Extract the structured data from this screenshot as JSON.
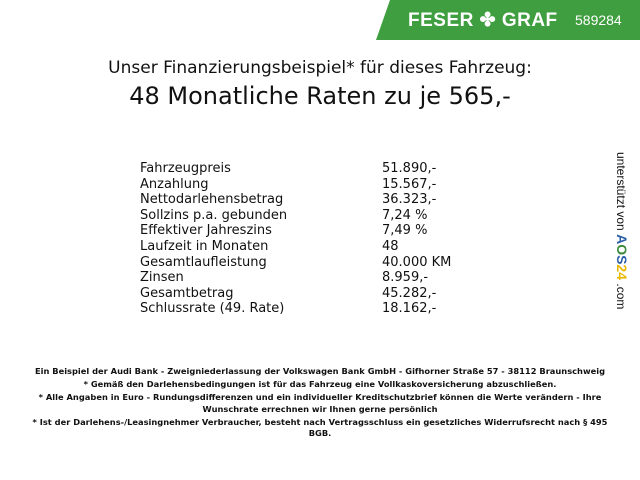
{
  "header": {
    "brand": "FESER ✤ GRAF",
    "code": "589284",
    "brand_color": "#3f9e3f"
  },
  "title": {
    "line1": "Unser Finanzierungsbeispiel* für dieses Fahrzeug:",
    "line2": "48 Monatliche Raten zu je 565,-"
  },
  "rows": [
    {
      "label": "Fahrzeugpreis",
      "value": "51.890,-"
    },
    {
      "label": "Anzahlung",
      "value": "15.567,-"
    },
    {
      "label": "Nettodarlehensbetrag",
      "value": "36.323,-"
    },
    {
      "label": "Sollzins p.a. gebunden",
      "value": "7,24 %"
    },
    {
      "label": "Effektiver Jahreszins",
      "value": "7,49 %"
    },
    {
      "label": "Laufzeit in Monaten",
      "value": "48"
    },
    {
      "label": "Gesamtlaufleistung",
      "value": "40.000 KM"
    },
    {
      "label": "Zinsen",
      "value": "8.959,-"
    },
    {
      "label": "Gesamtbetrag",
      "value": "45.282,-"
    },
    {
      "label": "Schlussrate (49. Rate)",
      "value": "18.162,-"
    }
  ],
  "side": {
    "text": "unterstützt von",
    "logo": "AOS24",
    ".com": ".com"
  },
  "footer": [
    "Ein Beispiel der Audi Bank - Zweigniederlassung der Volkswagen Bank GmbH - Gifhorner Straße 57 - 38112 Braunschweig",
    "* Gemäß den Darlehensbedingungen ist für das Fahrzeug eine Vollkaskoversicherung abzuschließen.",
    "* Alle Angaben in Euro - Rundungsdifferenzen und ein individueller Kreditschutzbrief können die Werte verändern - Ihre Wunschrate errechnen wir Ihnen gerne persönlich",
    "* Ist der Darlehens-/Leasingnehmer Verbraucher, besteht nach Vertragsschluss ein gesetzliches Widerrufsrecht nach § 495 BGB."
  ]
}
